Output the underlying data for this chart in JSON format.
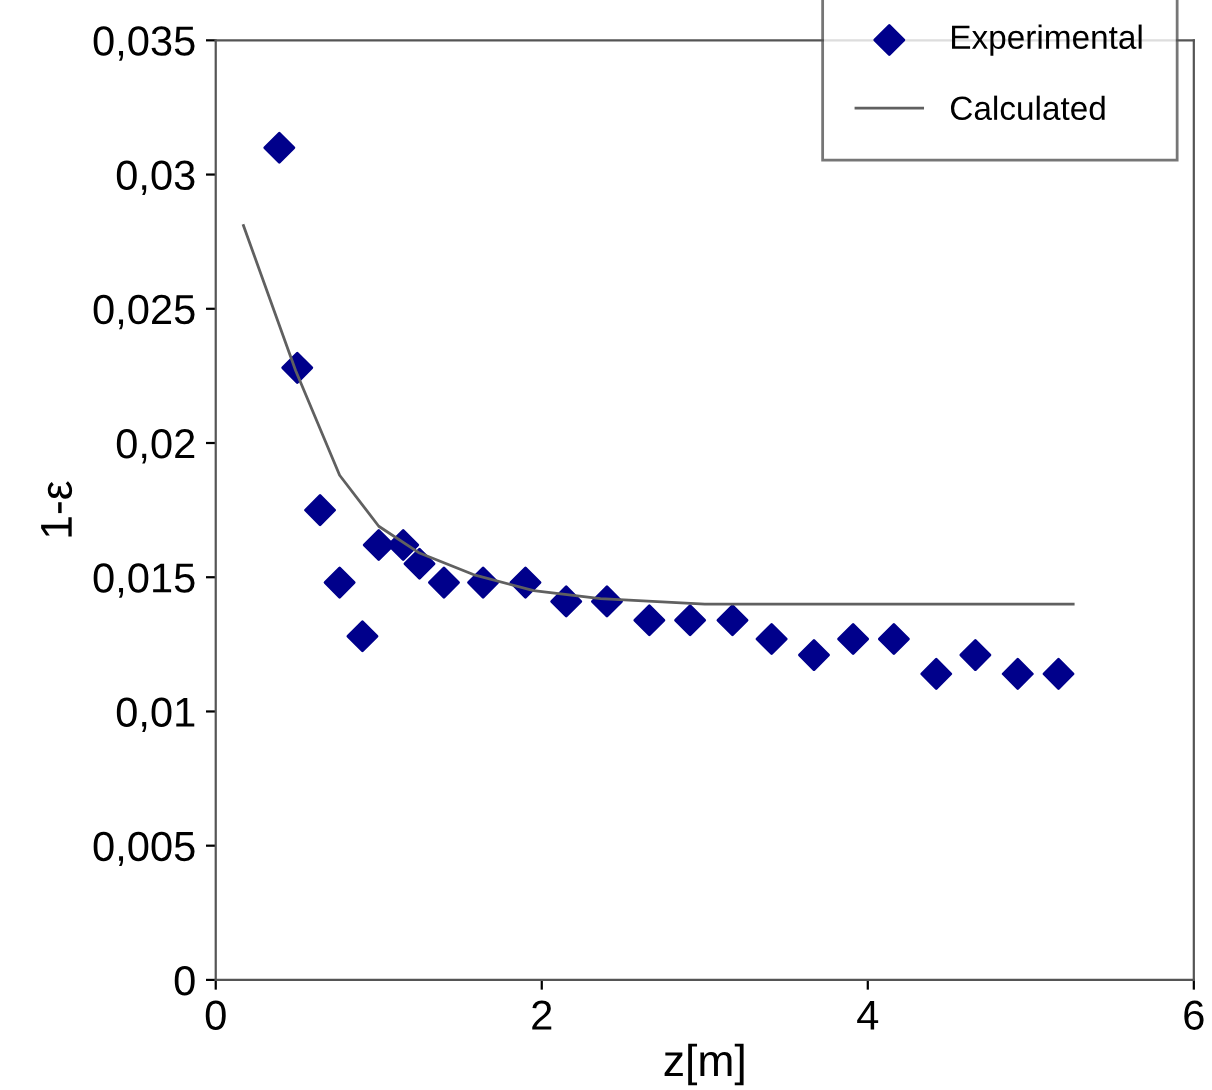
{
  "chart_data": {
    "type": "scatter",
    "xlabel": "z[m]",
    "ylabel": "1-ε",
    "xlim": [
      0,
      6
    ],
    "xticks": [
      0,
      2,
      4,
      6
    ],
    "ylim": [
      0,
      0.035
    ],
    "yticks": [
      0,
      {
        "value": 0.005,
        "label": "0,005"
      },
      {
        "value": 0.01,
        "label": "0,01"
      },
      {
        "value": 0.015,
        "label": "0,015"
      },
      {
        "value": 0.02,
        "label": "0,02"
      },
      {
        "value": 0.025,
        "label": "0,025"
      },
      {
        "value": 0.03,
        "label": "0,03"
      },
      {
        "value": 0.035,
        "label": "0,035"
      }
    ],
    "grid": false,
    "legend": "top right",
    "series": [
      {
        "name": "Experimental",
        "marker": "diamond",
        "color": "#00008b",
        "x": [
          0.39,
          0.5,
          0.64,
          0.76,
          0.9,
          1.0,
          1.15,
          1.25,
          1.4,
          1.64,
          1.9,
          2.15,
          2.4,
          2.66,
          2.91,
          3.17,
          3.41,
          3.67,
          3.91,
          4.16,
          4.42,
          4.66,
          4.92,
          5.17
        ],
        "values": [
          0.031,
          0.0228,
          0.0175,
          0.0148,
          0.0128,
          0.0162,
          0.0162,
          0.0155,
          0.0148,
          0.0148,
          0.0148,
          0.0141,
          0.0141,
          0.0134,
          0.0134,
          0.0134,
          0.0127,
          0.0121,
          0.0127,
          0.0127,
          0.0114,
          0.0121,
          0.0114,
          0.0114
        ]
      },
      {
        "name": "Calculated",
        "type": "line",
        "marker": "none",
        "line_style": "solid",
        "color": "#606060",
        "x": [
          0.17,
          0.49,
          0.76,
          1.0,
          1.25,
          1.58,
          1.95,
          2.36,
          3.0,
          4.0,
          5.26
        ],
        "values": [
          0.0281,
          0.0227,
          0.0188,
          0.0169,
          0.0159,
          0.0151,
          0.0145,
          0.0142,
          0.014,
          0.014,
          0.014
        ]
      }
    ]
  }
}
